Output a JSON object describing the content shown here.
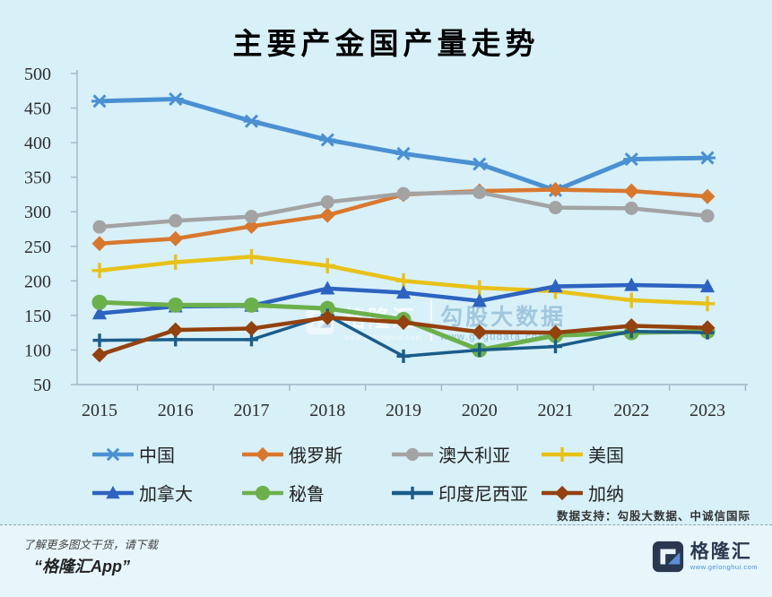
{
  "title": "主要产金国产量走势",
  "watermark": {
    "left_text": "格隆汇",
    "left_sub": "www.gelonghui.com",
    "right_text": "勾股大数据",
    "right_sub": "www.gogudata.com"
  },
  "footer": {
    "data_support": "数据支持：勾股大数据、中诚信国际",
    "promo_line1": "了解更多图文干货，请下载",
    "promo_line2": "“格隆汇App”",
    "logo_text": "格隆汇",
    "logo_sub": "www.gelonghui.com"
  },
  "chart_data": {
    "type": "line",
    "title": "主要产金国产量走势",
    "categories": [
      "2015",
      "2016",
      "2017",
      "2018",
      "2019",
      "2020",
      "2021",
      "2022",
      "2023"
    ],
    "series": [
      {
        "name": "中国",
        "key": "china",
        "color": "#4a90d2",
        "marker": "asterisk",
        "marker_size": 9,
        "line_width": 5,
        "values": [
          460,
          463,
          431,
          404,
          384,
          369,
          331,
          376,
          378
        ]
      },
      {
        "name": "俄罗斯",
        "key": "russia",
        "color": "#d8782e",
        "marker": "diamond",
        "marker_size": 8.5,
        "line_width": 4.5,
        "values": [
          254,
          261,
          279,
          295,
          325,
          330,
          332,
          330,
          322
        ]
      },
      {
        "name": "澳大利亚",
        "key": "australia",
        "color": "#a3a3a3",
        "marker": "circle",
        "marker_size": 7.5,
        "line_width": 4.5,
        "values": [
          278,
          287,
          293,
          314,
          326,
          328,
          306,
          305,
          294
        ]
      },
      {
        "name": "美国",
        "key": "usa",
        "color": "#e8c119",
        "marker": "plus",
        "marker_size": 8.5,
        "line_width": 4.5,
        "values": [
          215,
          227,
          235,
          222,
          200,
          190,
          185,
          172,
          167
        ]
      },
      {
        "name": "加拿大",
        "key": "canada",
        "color": "#2d63c0",
        "marker": "triangle",
        "marker_size": 8.5,
        "line_width": 4.5,
        "values": [
          153,
          163,
          164,
          189,
          183,
          171,
          192,
          194,
          192
        ]
      },
      {
        "name": "秘鲁",
        "key": "peru",
        "color": "#6cb04c",
        "marker": "circle",
        "marker_size": 8.5,
        "line_width": 5,
        "values": [
          169,
          165,
          165,
          160,
          144,
          100,
          121,
          125,
          127
        ]
      },
      {
        "name": "印度尼西亚",
        "key": "indonesia",
        "color": "#1a5c8a",
        "marker": "plus",
        "marker_size": 7.5,
        "line_width": 3.5,
        "values": [
          114,
          115,
          115,
          150,
          91,
          100,
          105,
          127,
          125
        ]
      },
      {
        "name": "加纳",
        "key": "ghana",
        "color": "#93410e",
        "marker": "diamond",
        "marker_size": 8.5,
        "line_width": 4.5,
        "values": [
          93,
          129,
          131,
          147,
          140,
          126,
          125,
          135,
          132
        ]
      }
    ],
    "xlabel": "",
    "ylabel": "",
    "ylim": [
      50,
      500
    ],
    "ytick_step": 50,
    "grid": false,
    "legend_position": "bottom",
    "axis_color": "#9db8c6",
    "background_color": "#d8f0f8"
  }
}
